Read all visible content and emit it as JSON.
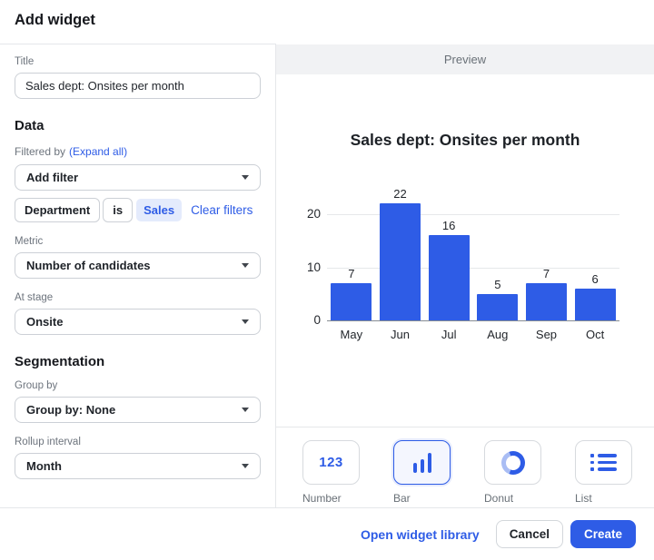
{
  "dialog": {
    "title": "Add widget"
  },
  "form": {
    "title_label": "Title",
    "title_value": "Sales dept: Onsites per month",
    "data_heading": "Data",
    "filtered_by_label": "Filtered by",
    "expand_all_label": "(Expand all)",
    "add_filter_placeholder": "Add filter",
    "filter": {
      "field": "Department",
      "operator": "is",
      "value": "Sales",
      "clear_label": "Clear filters"
    },
    "metric_label": "Metric",
    "metric_value": "Number of candidates",
    "at_stage_label": "At stage",
    "at_stage_value": "Onsite",
    "segmentation_heading": "Segmentation",
    "group_by_label": "Group by",
    "group_by_value": "Group by: None",
    "rollup_label": "Rollup interval",
    "rollup_value": "Month"
  },
  "preview": {
    "header": "Preview",
    "widget_types": [
      {
        "label": "Number",
        "icon": "number-123-icon",
        "selected": false
      },
      {
        "label": "Bar",
        "icon": "bar-chart-icon",
        "selected": true
      },
      {
        "label": "Donut",
        "icon": "donut-chart-icon",
        "selected": false
      },
      {
        "label": "List",
        "icon": "list-icon",
        "selected": false
      }
    ]
  },
  "chart_data": {
    "type": "bar",
    "title": "Sales dept: Onsites per month",
    "categories": [
      "May",
      "Jun",
      "Jul",
      "Aug",
      "Sep",
      "Oct"
    ],
    "values": [
      7,
      22,
      16,
      5,
      7,
      6
    ],
    "y_ticks": [
      0,
      10,
      20
    ],
    "ylim": [
      0,
      24
    ],
    "xlabel": "",
    "ylabel": "",
    "bar_color": "#2e5ce6",
    "grid": true,
    "legend": "none",
    "data_labels": true
  },
  "footer": {
    "library_link": "Open widget library",
    "cancel_label": "Cancel",
    "create_label": "Create"
  },
  "colors": {
    "accent": "#2e5ce6",
    "chip_bg": "#e4ebfc",
    "preview_bar_bg": "#f1f2f4",
    "gridline": "#e6e8ea",
    "axis_line": "#868c93"
  }
}
